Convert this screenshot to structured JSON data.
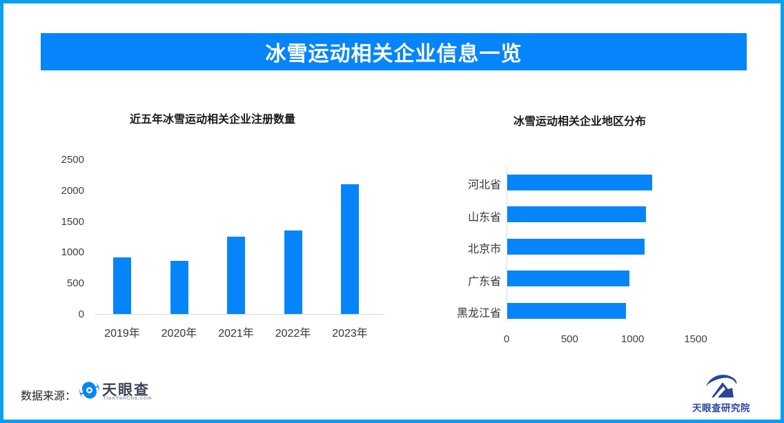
{
  "banner": {
    "title": "冰雪运动相关企业信息一览"
  },
  "colors": {
    "accent_blue": "#0685fa",
    "border_blue": "#0a9ff2",
    "axis_line_gray": "#d9d9d9",
    "tyc_text_dark": "#3e4757",
    "tyc_sub_gray": "#98a0ab",
    "institute_navy": "#27469a"
  },
  "chart_data": [
    {
      "type": "bar",
      "orientation": "vertical",
      "title": "近五年冰雪运动相关企业注册数量",
      "categories": [
        "2019年",
        "2020年",
        "2021年",
        "2022年",
        "2023年"
      ],
      "values": [
        920,
        860,
        1250,
        1350,
        2100
      ],
      "ylabel": "",
      "xlabel": "",
      "ylim": [
        0,
        2500
      ],
      "yticks": [
        0,
        500,
        1000,
        1500,
        2000,
        2500
      ],
      "grid": false,
      "legend": false,
      "bar_color": "#0685fa"
    },
    {
      "type": "bar",
      "orientation": "horizontal",
      "title": "冰雪运动相关企业地区分布",
      "categories": [
        "河北省",
        "山东省",
        "北京市",
        "广东省",
        "黑龙江省"
      ],
      "values": [
        1150,
        1100,
        1090,
        970,
        940
      ],
      "ylabel": "",
      "xlabel": "",
      "xlim": [
        0,
        1500
      ],
      "xticks": [
        0,
        500,
        1000,
        1500
      ],
      "grid": false,
      "legend": false,
      "bar_color": "#0685fa"
    }
  ],
  "footer": {
    "source_label": "数据来源：",
    "tyc_logo_text": "天眼查",
    "tyc_logo_subtext": "TianYanCha.com",
    "institute_logo_text": "天眼查研究院"
  }
}
